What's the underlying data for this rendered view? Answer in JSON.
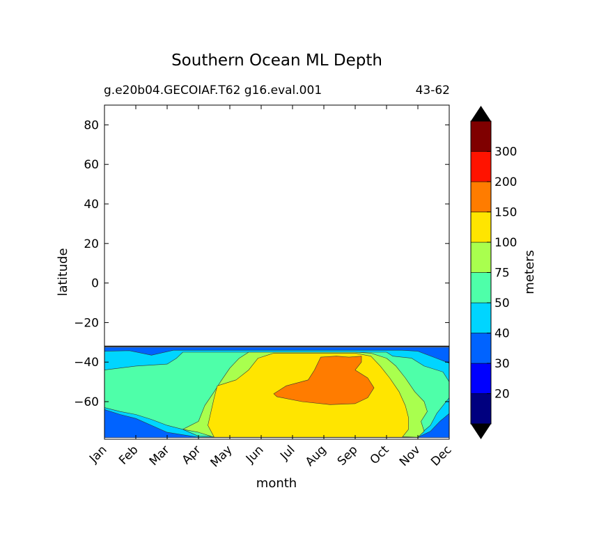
{
  "chart_data": {
    "type": "contour",
    "title": "Southern Ocean ML Depth",
    "subtitle_left": "g.e20b04.GECOIAF.T62 g16.eval.001",
    "subtitle_right": "43-62",
    "xlabel": "month",
    "ylabel": "latitude",
    "x_ticks": [
      "Jan",
      "Feb",
      "Mar",
      "Apr",
      "May",
      "Jun",
      "Jul",
      "Aug",
      "Sep",
      "Oct",
      "Nov",
      "Dec"
    ],
    "y_ticks": [
      80,
      60,
      40,
      20,
      0,
      -20,
      -40,
      -60
    ],
    "ylim": [
      -79,
      90
    ],
    "data_lat_range": [
      -79,
      -32
    ],
    "colorbar": {
      "label": "meters",
      "levels": [
        20,
        30,
        40,
        50,
        75,
        100,
        150,
        200,
        300
      ],
      "colors": [
        "#00007f",
        "#0000ff",
        "#0063ff",
        "#00d5ff",
        "#4effa9",
        "#a9ff4e",
        "#ffe500",
        "#ff7c00",
        "#ff1300",
        "#7f0000"
      ],
      "extend": "both"
    },
    "series": [
      {
        "name": "band",
        "level_index": 1,
        "points": [
          [
            0.0,
            -71.5
          ],
          [
            1.0,
            -76.5
          ],
          [
            4.0,
            -78.0
          ],
          [
            7.0,
            -78.0
          ],
          [
            10.0,
            -78.0
          ],
          [
            11.0,
            -78.0
          ],
          [
            11.0,
            -73.0
          ],
          [
            10.7,
            -75.0
          ],
          [
            10.0,
            -77.0
          ],
          [
            8.0,
            -77.5
          ],
          [
            5.0,
            -77.2
          ],
          [
            2.5,
            -76.8
          ],
          [
            1.0,
            -74.5
          ],
          [
            0.5,
            -71.0
          ],
          [
            0.0,
            -68.0
          ]
        ]
      },
      {
        "name": "band",
        "level_index": 2,
        "points": [
          [
            0.0,
            -32.5
          ],
          [
            11.0,
            -32.5
          ],
          [
            11.0,
            -78.2
          ],
          [
            0.0,
            -78.2
          ]
        ]
      },
      {
        "name": "band",
        "level_index": 3,
        "points": [
          [
            0.0,
            -34.5
          ],
          [
            0.8,
            -34.2
          ],
          [
            1.5,
            -36.5
          ],
          [
            2.2,
            -34.0
          ],
          [
            3.0,
            -34.0
          ],
          [
            5.0,
            -34.0
          ],
          [
            8.0,
            -34.0
          ],
          [
            9.5,
            -34.0
          ],
          [
            10.0,
            -34.5
          ],
          [
            10.5,
            -37.5
          ],
          [
            11.0,
            -40.5
          ],
          [
            11.0,
            -66.0
          ],
          [
            10.7,
            -70.0
          ],
          [
            10.4,
            -75.0
          ],
          [
            10.0,
            -78.0
          ],
          [
            8.0,
            -78.0
          ],
          [
            5.0,
            -78.0
          ],
          [
            3.0,
            -78.0
          ],
          [
            2.0,
            -75.5
          ],
          [
            1.5,
            -72.0
          ],
          [
            1.0,
            -68.5
          ],
          [
            0.5,
            -66.5
          ],
          [
            0.0,
            -64.0
          ]
        ]
      },
      {
        "name": "band",
        "level_index": 4,
        "points": [
          [
            0.0,
            -44.0
          ],
          [
            1.0,
            -42.0
          ],
          [
            2.0,
            -41.0
          ],
          [
            2.3,
            -38.0
          ],
          [
            2.5,
            -35.0
          ],
          [
            4.0,
            -35.0
          ],
          [
            6.0,
            -35.0
          ],
          [
            8.0,
            -35.0
          ],
          [
            9.0,
            -35.0
          ],
          [
            9.2,
            -37.0
          ],
          [
            9.8,
            -38.0
          ],
          [
            10.2,
            -42.0
          ],
          [
            10.8,
            -45.0
          ],
          [
            11.0,
            -50.0
          ],
          [
            11.0,
            -58.0
          ],
          [
            10.8,
            -62.0
          ],
          [
            10.6,
            -66.0
          ],
          [
            10.4,
            -72.0
          ],
          [
            10.1,
            -76.0
          ],
          [
            10.0,
            -78.0
          ],
          [
            8.0,
            -78.0
          ],
          [
            5.0,
            -78.0
          ],
          [
            3.0,
            -77.5
          ],
          [
            2.5,
            -74.0
          ],
          [
            2.0,
            -72.0
          ],
          [
            1.5,
            -69.0
          ],
          [
            1.0,
            -66.5
          ],
          [
            0.5,
            -65.0
          ],
          [
            0.0,
            -63.0
          ]
        ]
      },
      {
        "name": "band",
        "level_index": 5,
        "points": [
          [
            2.5,
            -74.0
          ],
          [
            3.0,
            -70.0
          ],
          [
            3.2,
            -62.0
          ],
          [
            3.5,
            -55.0
          ],
          [
            3.7,
            -50.0
          ],
          [
            4.0,
            -43.0
          ],
          [
            4.3,
            -38.0
          ],
          [
            4.6,
            -35.0
          ],
          [
            8.0,
            -35.0
          ],
          [
            8.5,
            -35.5
          ],
          [
            9.0,
            -38.0
          ],
          [
            9.3,
            -42.0
          ],
          [
            9.6,
            -48.0
          ],
          [
            9.9,
            -55.0
          ],
          [
            10.2,
            -60.0
          ],
          [
            10.3,
            -65.0
          ],
          [
            10.1,
            -70.0
          ],
          [
            10.2,
            -75.0
          ],
          [
            10.0,
            -78.0
          ],
          [
            9.0,
            -77.5
          ],
          [
            8.0,
            -78.0
          ],
          [
            5.0,
            -78.0
          ],
          [
            3.5,
            -78.0
          ],
          [
            3.0,
            -75.5
          ]
        ]
      },
      {
        "name": "band",
        "level_index": 6,
        "points": [
          [
            3.5,
            -78.0
          ],
          [
            3.3,
            -72.0
          ],
          [
            3.4,
            -65.0
          ],
          [
            3.5,
            -58.0
          ],
          [
            3.6,
            -52.0
          ],
          [
            4.2,
            -49.0
          ],
          [
            4.6,
            -44.0
          ],
          [
            4.9,
            -38.0
          ],
          [
            5.4,
            -35.5
          ],
          [
            8.0,
            -35.5
          ],
          [
            8.5,
            -37.0
          ],
          [
            8.8,
            -42.0
          ],
          [
            9.1,
            -48.0
          ],
          [
            9.4,
            -55.0
          ],
          [
            9.6,
            -62.0
          ],
          [
            9.7,
            -68.0
          ],
          [
            9.7,
            -74.0
          ],
          [
            9.5,
            -78.0
          ],
          [
            7.0,
            -78.0
          ],
          [
            5.0,
            -78.0
          ]
        ]
      },
      {
        "name": "band",
        "level_index": 7,
        "points": [
          [
            5.4,
            -56.0
          ],
          [
            5.8,
            -52.0
          ],
          [
            6.5,
            -49.0
          ],
          [
            6.7,
            -44.0
          ],
          [
            6.9,
            -37.5
          ],
          [
            7.4,
            -37.0
          ],
          [
            7.8,
            -37.5
          ],
          [
            8.2,
            -37.0
          ],
          [
            8.2,
            -40.0
          ],
          [
            8.0,
            -44.0
          ],
          [
            8.4,
            -48.0
          ],
          [
            8.6,
            -53.0
          ],
          [
            8.4,
            -58.0
          ],
          [
            8.0,
            -61.0
          ],
          [
            7.2,
            -61.5
          ],
          [
            6.3,
            -60.0
          ],
          [
            5.5,
            -57.5
          ]
        ]
      }
    ]
  }
}
